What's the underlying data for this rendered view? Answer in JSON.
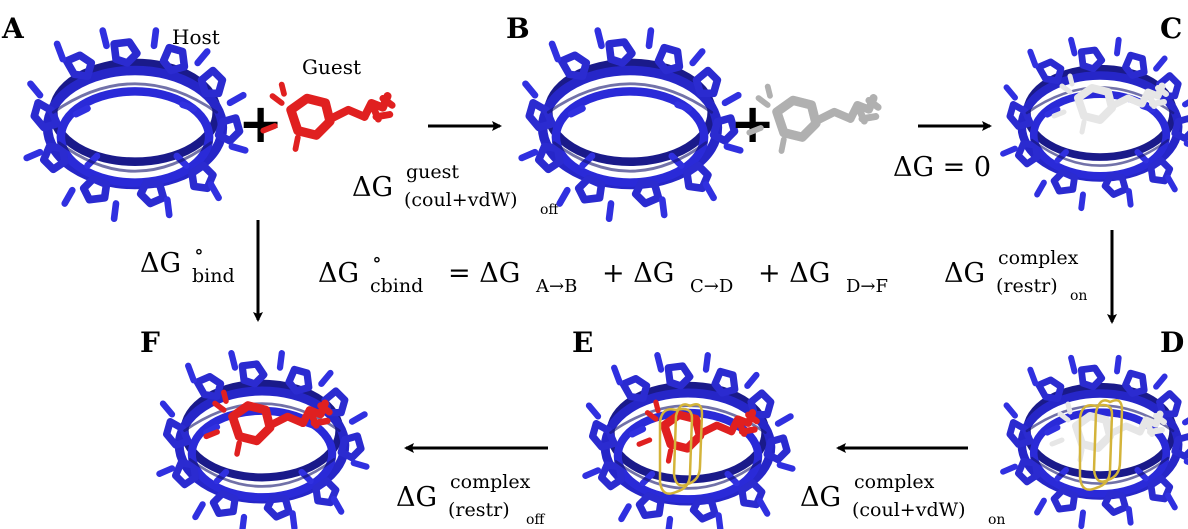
{
  "panels": {
    "A": "A",
    "B": "B",
    "C": "C",
    "D": "D",
    "E": "E",
    "F": "F"
  },
  "labels": {
    "host": "Host",
    "guest": "Guest",
    "plus": "+"
  },
  "equations": {
    "ab_main": "ΔG",
    "ab_sup": "guest",
    "ab_sub": "(coul+vdW)",
    "ab_subsub": "off",
    "bc": "ΔG = 0",
    "cd_main": "ΔG",
    "cd_sup": "complex",
    "cd_sub": "(restr)",
    "cd_subsub": "on",
    "de_main": "ΔG",
    "de_sup": "complex",
    "de_sub": "(coul+vdW)",
    "de_subsub": "on",
    "ef_main": "ΔG",
    "ef_sup": "complex",
    "ef_sub": "(restr)",
    "ef_subsub": "off",
    "af_main": "ΔG",
    "af_sup": "∘",
    "af_sub": "bind",
    "center_lhs_main": "ΔG",
    "center_lhs_sup": "∘",
    "center_lhs_sub": "cbind",
    "center_rhs_1": "= ΔG",
    "center_rhs_1_sub": "A→B",
    "center_rhs_2": "+ ΔG",
    "center_rhs_2_sub": "C→D",
    "center_rhs_3": "+ ΔG",
    "center_rhs_3_sub": "D→F"
  },
  "colors": {
    "host": "#2222c8",
    "guest_on": "#e02020",
    "guest_off": "#d8d8d8",
    "restraint": "#d4b43a"
  }
}
